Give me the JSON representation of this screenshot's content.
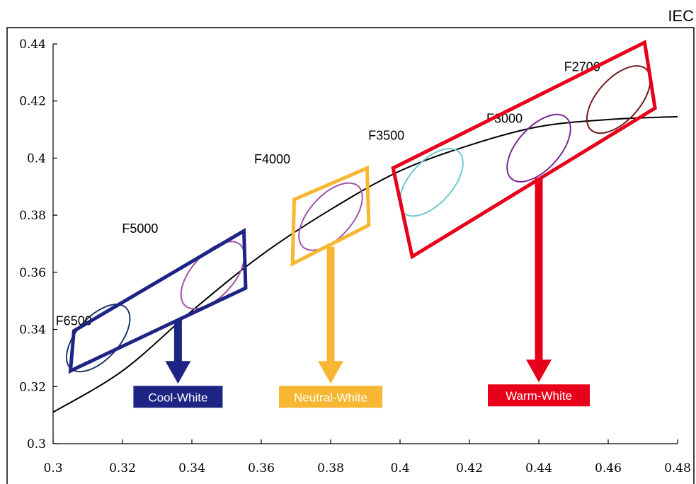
{
  "corner_label": "IEC",
  "chart_data": {
    "type": "scatter",
    "title": "",
    "xlabel": "",
    "ylabel": "",
    "xlim": [
      0.3,
      0.48
    ],
    "ylim": [
      0.3,
      0.44
    ],
    "grid": false,
    "x_ticks": [
      {
        "value": 0.3,
        "label": "0.3"
      },
      {
        "value": 0.32,
        "label": "0.32"
      },
      {
        "value": 0.34,
        "label": "0.34"
      },
      {
        "value": 0.36,
        "label": "0.36"
      },
      {
        "value": 0.38,
        "label": "0.38"
      },
      {
        "value": 0.4,
        "label": "0.4"
      },
      {
        "value": 0.42,
        "label": "0.42"
      },
      {
        "value": 0.44,
        "label": "0.44"
      },
      {
        "value": 0.46,
        "label": "0.46"
      },
      {
        "value": 0.48,
        "label": "0.48"
      }
    ],
    "y_ticks": [
      {
        "value": 0.3,
        "label": "0.3"
      },
      {
        "value": 0.32,
        "label": "0.32"
      },
      {
        "value": 0.34,
        "label": "0.34"
      },
      {
        "value": 0.36,
        "label": "0.36"
      },
      {
        "value": 0.38,
        "label": "0.38"
      },
      {
        "value": 0.4,
        "label": "0.4"
      },
      {
        "value": 0.42,
        "label": "0.42"
      },
      {
        "value": 0.44,
        "label": "0.44"
      }
    ],
    "locus": {
      "color": "#000000",
      "points": [
        [
          0.3,
          0.311
        ],
        [
          0.32,
          0.3255
        ],
        [
          0.34,
          0.3465
        ],
        [
          0.36,
          0.366
        ],
        [
          0.38,
          0.382
        ],
        [
          0.4,
          0.3955
        ],
        [
          0.42,
          0.4045
        ],
        [
          0.44,
          0.411
        ],
        [
          0.46,
          0.4135
        ],
        [
          0.48,
          0.4145
        ]
      ]
    },
    "ellipses": [
      {
        "label": "F6500",
        "cx": 0.313,
        "cy": 0.337,
        "color": "#1f3a68"
      },
      {
        "label": "F5000",
        "cx": 0.346,
        "cy": 0.359,
        "color": "#a054a8"
      },
      {
        "label": "F4000",
        "cx": 0.38,
        "cy": 0.3795,
        "color": "#a054a8"
      },
      {
        "label": "F3500",
        "cx": 0.409,
        "cy": 0.3915,
        "color": "#72c8d0"
      },
      {
        "label": "F3000",
        "cx": 0.44,
        "cy": 0.4035,
        "color": "#7a2890"
      },
      {
        "label": "F2700",
        "cx": 0.463,
        "cy": 0.4205,
        "color": "#6e1a1a"
      }
    ],
    "groups": [
      {
        "label": "Cool-White",
        "color": "#1e2483",
        "polygon": [
          [
            0.305,
            0.3255
          ],
          [
            0.3555,
            0.3545
          ],
          [
            0.355,
            0.3745
          ],
          [
            0.306,
            0.3395
          ]
        ],
        "arrow_x": 0.336,
        "arrow_from_y": 0.343,
        "arrow_to_y": 0.321
      },
      {
        "label": "Neutral-White",
        "color": "#f7b733",
        "polygon": [
          [
            0.369,
            0.363
          ],
          [
            0.391,
            0.3765
          ],
          [
            0.3905,
            0.3965
          ],
          [
            0.3695,
            0.3855
          ]
        ],
        "arrow_x": 0.38,
        "arrow_from_y": 0.369,
        "arrow_to_y": 0.321
      },
      {
        "label": "Warm-White",
        "color": "#e6001a",
        "polygon": [
          [
            0.4035,
            0.3655
          ],
          [
            0.4735,
            0.4175
          ],
          [
            0.4705,
            0.4405
          ],
          [
            0.398,
            0.3965
          ]
        ],
        "arrow_x": 0.44,
        "arrow_from_y": 0.393,
        "arrow_to_y": 0.3215
      }
    ]
  }
}
